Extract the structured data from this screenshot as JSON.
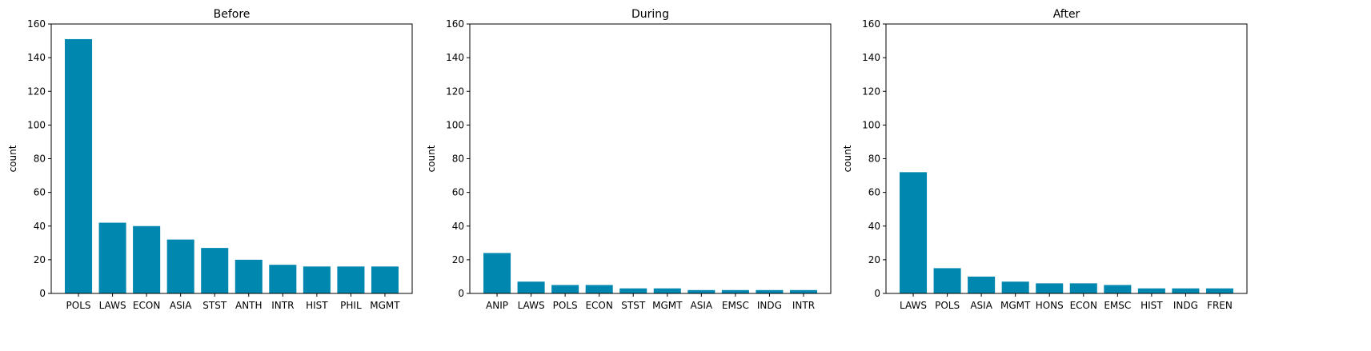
{
  "colors": {
    "bar": "#0087b0",
    "axis": "#000000",
    "background": "#ffffff"
  },
  "chart_data": [
    {
      "type": "bar",
      "title": "Before",
      "xlabel": "",
      "ylabel": "count",
      "ylim": [
        0,
        160
      ],
      "yticks": [
        0,
        20,
        40,
        60,
        80,
        100,
        120,
        140,
        160
      ],
      "categories": [
        "POLS",
        "LAWS",
        "ECON",
        "ASIA",
        "STST",
        "ANTH",
        "INTR",
        "HIST",
        "PHIL",
        "MGMT"
      ],
      "values": [
        151,
        42,
        40,
        32,
        27,
        20,
        17,
        16,
        16,
        16
      ]
    },
    {
      "type": "bar",
      "title": "During",
      "xlabel": "",
      "ylabel": "count",
      "ylim": [
        0,
        160
      ],
      "yticks": [
        0,
        20,
        40,
        60,
        80,
        100,
        120,
        140,
        160
      ],
      "categories": [
        "ANIP",
        "LAWS",
        "POLS",
        "ECON",
        "STST",
        "MGMT",
        "ASIA",
        "EMSC",
        "INDG",
        "INTR"
      ],
      "values": [
        24,
        7,
        5,
        5,
        3,
        3,
        2,
        2,
        2,
        2
      ]
    },
    {
      "type": "bar",
      "title": "After",
      "xlabel": "",
      "ylabel": "count",
      "ylim": [
        0,
        160
      ],
      "yticks": [
        0,
        20,
        40,
        60,
        80,
        100,
        120,
        140,
        160
      ],
      "categories": [
        "LAWS",
        "POLS",
        "ASIA",
        "MGMT",
        "HONS",
        "ECON",
        "EMSC",
        "HIST",
        "INDG",
        "FREN"
      ],
      "values": [
        72,
        15,
        10,
        7,
        6,
        6,
        5,
        3,
        3,
        3
      ]
    }
  ]
}
